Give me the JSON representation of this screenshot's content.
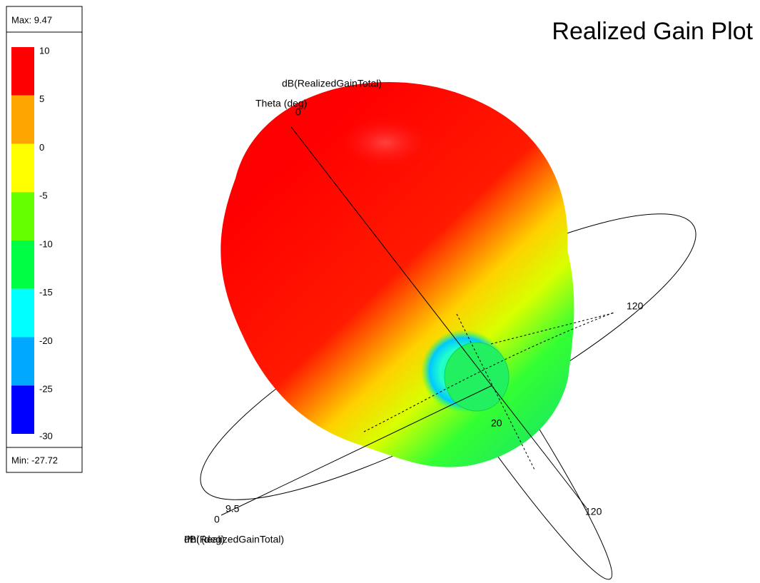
{
  "title": "Realized Gain Plot",
  "legend": {
    "max": "Max: 9.47",
    "min": "Min: -27.72",
    "ticks": [
      10,
      5,
      0,
      -5,
      -10,
      -15,
      -20,
      -25,
      -30
    ],
    "colors": [
      "#ff0000",
      "#ffa500",
      "#ffff00",
      "#66ff00",
      "#00ff44",
      "#00ffff",
      "#00a8ff",
      "#0000ff"
    ]
  },
  "annotations": {
    "theta_quantity": "dB(RealizedGainTotal)",
    "theta_axis": "Theta (deg)",
    "theta_zero": "0",
    "theta_ring_right": "120",
    "theta_ring_inner": "20",
    "theta_ring_bottom": "120",
    "phi_tick": "9.5",
    "phi_zero": "0",
    "phi_quantity": "dB(RealizedGainTotal)",
    "phi_axis": "Phi (deg)"
  }
}
